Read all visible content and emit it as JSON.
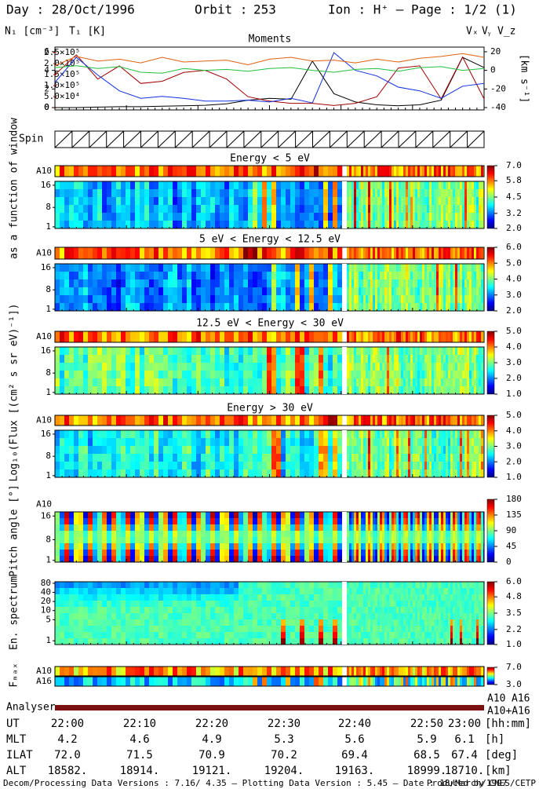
{
  "header": {
    "day": "Day : 28/Oct/1996",
    "orbit_label": "Orbit :",
    "orbit": "253",
    "ion": "Ion : H⁺ – Page : 1/2 (1)"
  },
  "chart_data": [
    {
      "type": "line",
      "title": "Moments",
      "x": [
        0,
        3,
        6,
        9,
        12,
        15,
        18,
        21,
        24,
        27,
        30,
        33,
        36,
        39,
        42,
        45,
        48,
        51,
        54,
        57,
        60
      ],
      "xlim": [
        0,
        60
      ],
      "ylim": [
        -0.25,
        6.5
      ],
      "yticks": [
        0,
        2,
        4,
        6
      ],
      "y2lim": [
        -10000,
        275000
      ],
      "y2ticks": [
        0,
        {
          "value": 50000,
          "label": "5.0×10⁴"
        },
        {
          "value": 100000,
          "label": "1.0×10⁵"
        },
        {
          "value": 150000,
          "label": "1.5×10⁵"
        },
        {
          "value": 200000,
          "label": "2.0×10⁵"
        },
        {
          "value": 250000,
          "label": "2.5×10⁵"
        }
      ],
      "y3lim": [
        -42.5,
        25
      ],
      "y3ticks": [
        -40,
        -20,
        0,
        20
      ],
      "y3label": "[km s⁻¹]",
      "series": [
        {
          "name": "N₁ [cm⁻³]",
          "color": "#000000",
          "values": [
            0,
            0,
            0.05,
            0.1,
            0.1,
            0.15,
            0.2,
            0.25,
            0.4,
            0.8,
            1.0,
            0.9,
            5.0,
            1.5,
            0.6,
            0.3,
            0.2,
            0.3,
            0.8,
            5.4,
            4.3
          ]
        },
        {
          "name": "T₁ [K]",
          "color": "#a00000",
          "axis": "y2",
          "values": [
            150000,
            240000,
            130000,
            190000,
            110000,
            120000,
            160000,
            170000,
            130000,
            50000,
            30000,
            20000,
            20000,
            10000,
            20000,
            50000,
            180000,
            190000,
            40000,
            230000,
            40000
          ]
        },
        {
          "name": "Vₓ",
          "color": "#1030e0",
          "axis": "y3",
          "values": [
            -13,
            14,
            -5,
            -22,
            -30,
            -28,
            -30,
            -33,
            -33,
            -32,
            -34,
            -30,
            -35,
            19,
            0,
            -6,
            -18,
            -22,
            -30,
            -17,
            -14
          ]
        },
        {
          "name": "Vᵧ",
          "color": "#20c040",
          "axis": "y3",
          "values": [
            3,
            5,
            2,
            4,
            -2,
            -3,
            2,
            0,
            1,
            -1,
            2,
            3,
            0,
            -2,
            1,
            2,
            -1,
            3,
            4,
            0,
            2
          ]
        },
        {
          "name": "V_z",
          "color": "#e06010",
          "axis": "y3",
          "values": [
            5,
            15,
            10,
            12,
            8,
            14,
            9,
            10,
            11,
            6,
            12,
            14,
            10,
            11,
            8,
            12,
            9,
            13,
            15,
            18,
            14
          ]
        }
      ]
    }
  ],
  "spin_label": "Spin",
  "flux_label": "Log₁₀(Flux [(cm² s sr eV)⁻¹])",
  "window_label": "as a function of window",
  "panels": [
    {
      "title": "Energy < 5 eV",
      "strips": [
        "A10"
      ],
      "ylim": [
        0.4,
        17.4
      ],
      "yticks": [
        1,
        8,
        16
      ],
      "clim": [
        2,
        7
      ],
      "cticks": [
        {
          "value": 2,
          "label": "2.0"
        },
        {
          "value": 3.2,
          "label": "3.2"
        },
        {
          "value": 4.5,
          "label": "4.5"
        },
        {
          "value": 5.8,
          "label": "5.8"
        },
        {
          "value": 7,
          "label": "7.0"
        }
      ]
    },
    {
      "title": "5 eV < Energy < 12.5 eV",
      "strips": [
        "A10"
      ],
      "ylim": [
        0.4,
        17.4
      ],
      "yticks": [
        1,
        8,
        16
      ],
      "clim": [
        2,
        6
      ],
      "cticks": [
        {
          "value": 2,
          "label": "2.0"
        },
        {
          "value": 3,
          "label": "3.0"
        },
        {
          "value": 4,
          "label": "4.0"
        },
        {
          "value": 5,
          "label": "5.0"
        },
        {
          "value": 6,
          "label": "6.0"
        }
      ]
    },
    {
      "title": "12.5 eV < Energy < 30 eV",
      "strips": [
        "A10"
      ],
      "ylim": [
        0.4,
        17.4
      ],
      "yticks": [
        1,
        8,
        16
      ],
      "clim": [
        1,
        5
      ],
      "cticks": [
        {
          "value": 1,
          "label": "1.0"
        },
        {
          "value": 2,
          "label": "2.0"
        },
        {
          "value": 3,
          "label": "3.0"
        },
        {
          "value": 4,
          "label": "4.0"
        },
        {
          "value": 5,
          "label": "5.0"
        }
      ]
    },
    {
      "title": "Energy > 30 eV",
      "strips": [
        "A10"
      ],
      "ylim": [
        0.4,
        17.4
      ],
      "yticks": [
        1,
        8,
        16
      ],
      "clim": [
        1,
        5
      ],
      "cticks": [
        {
          "value": 1,
          "label": "1.0"
        },
        {
          "value": 2,
          "label": "2.0"
        },
        {
          "value": 3,
          "label": "3.0"
        },
        {
          "value": 4,
          "label": "4.0"
        },
        {
          "value": 5,
          "label": "5.0"
        }
      ]
    },
    {
      "ylabel": "Pitch angle [°]",
      "strips": [
        "A10"
      ],
      "ylim": [
        0.4,
        17.4
      ],
      "yticks": [
        1,
        8,
        16
      ],
      "clim": [
        0,
        180
      ],
      "cticks": [
        0,
        45,
        90,
        135,
        180
      ]
    },
    {
      "ylabel": "En. spectrum",
      "log": true,
      "ylim": [
        0.75,
        90
      ],
      "yticks": [
        1,
        5,
        10,
        20,
        40,
        80
      ],
      "clim": [
        1,
        6
      ],
      "cticks": [
        {
          "value": 1,
          "label": "1.0"
        },
        {
          "value": 2.2,
          "label": "2.2"
        },
        {
          "value": 3.5,
          "label": "3.5"
        },
        {
          "value": 4.8,
          "label": "4.8"
        },
        {
          "value": 6,
          "label": "6.0"
        }
      ]
    },
    {
      "ylabel": "Fₘₐₓ",
      "strips": [
        "A10",
        "A16"
      ],
      "clim": [
        3,
        7
      ],
      "cticks": [
        {
          "value": 3,
          "label": "3.0"
        },
        {
          "value": 7,
          "label": "7.0"
        }
      ]
    }
  ],
  "analyser": {
    "label": "Analyser",
    "legend": [
      "A10",
      "A16",
      "A10+A16"
    ]
  },
  "table": {
    "rows": [
      {
        "label": "UT",
        "values": [
          "22:00",
          "22:10",
          "22:20",
          "22:30",
          "22:40",
          "22:50",
          "23:00"
        ],
        "unit": "[hh:mm]"
      },
      {
        "label": "MLT",
        "values": [
          "4.2",
          "4.6",
          "4.9",
          "5.3",
          "5.6",
          "5.9",
          "6.1"
        ],
        "unit": "[h]"
      },
      {
        "label": "ILAT",
        "values": [
          "72.0",
          "71.5",
          "70.9",
          "70.2",
          "69.4",
          "68.5",
          "67.4"
        ],
        "unit": "[deg]"
      },
      {
        "label": "ALT",
        "values": [
          "18582.",
          "18914.",
          "19121.",
          "19204.",
          "19163.",
          "18999.",
          "18710."
        ],
        "unit": "[km]"
      }
    ]
  },
  "footer": {
    "left": "Decom/Processing Data Versions : 7.16/ 4.35 – Plotting Data Version : 5.45 – Date : 18/March/1997",
    "right": "Produced by CNES/CETP"
  }
}
